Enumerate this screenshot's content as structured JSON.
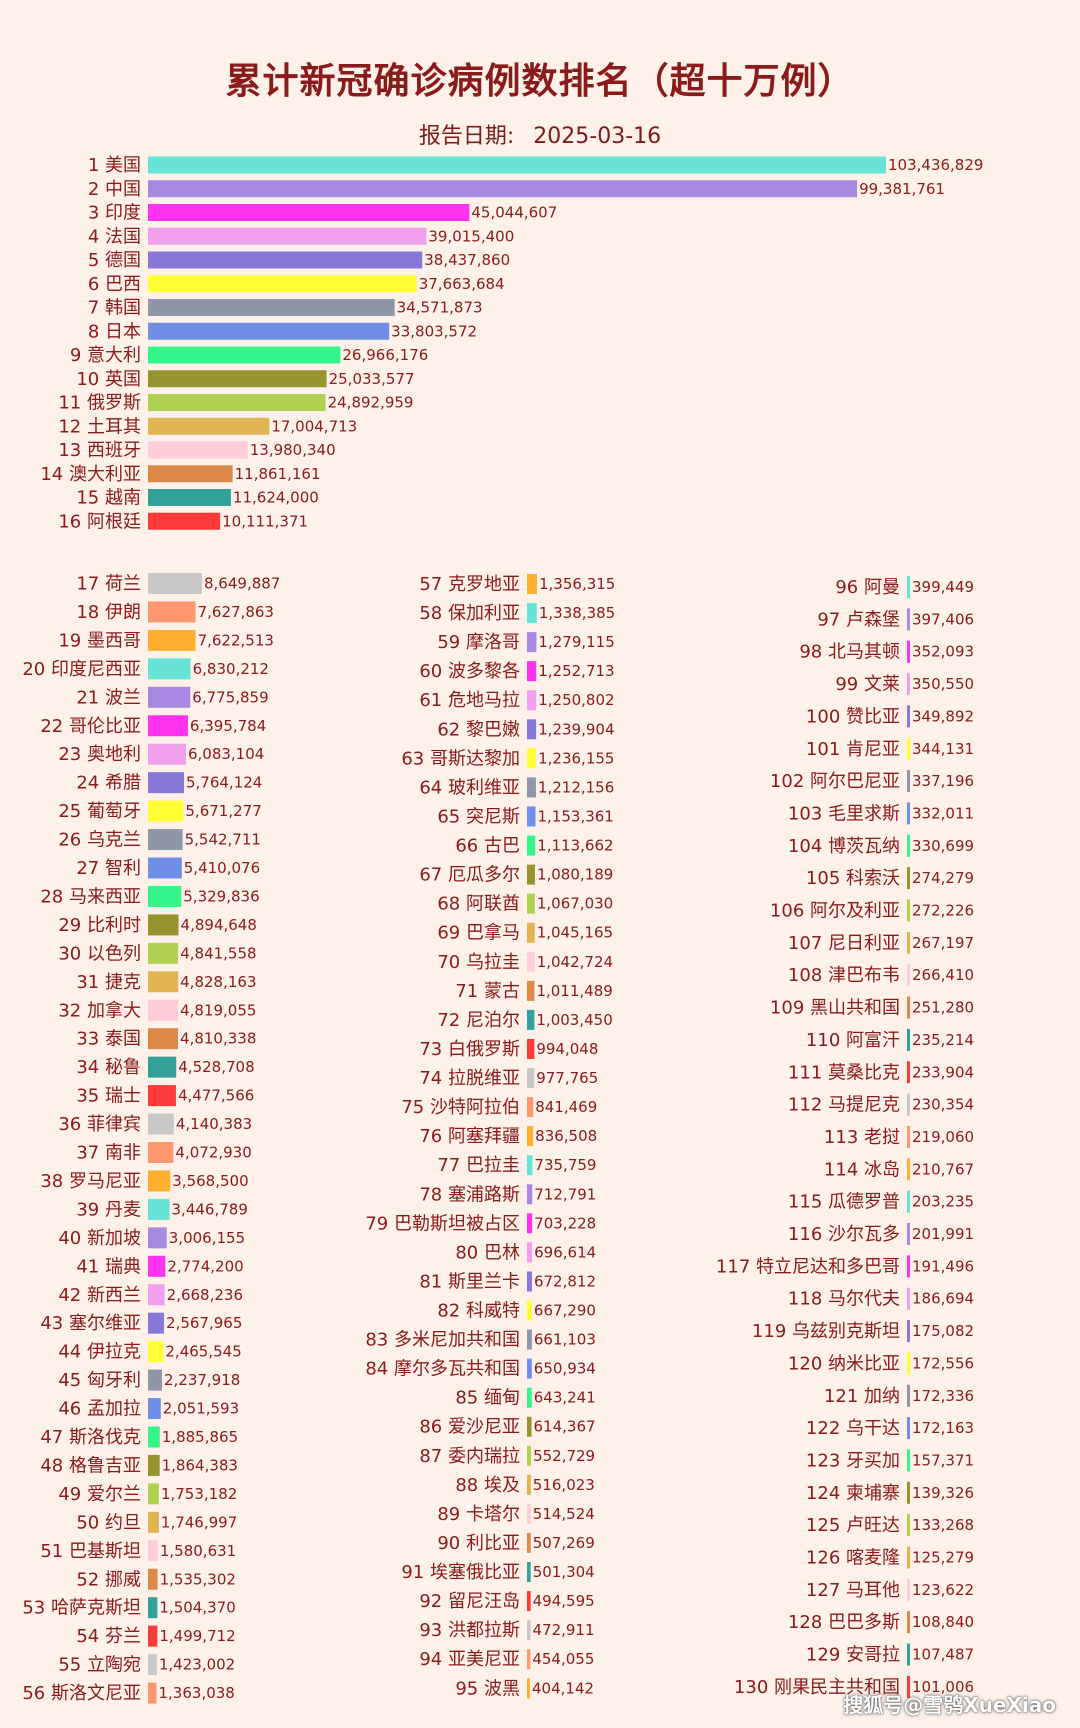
{
  "title": "累计新冠确诊病例数排名（超十万例）",
  "report_label": "报告日期:",
  "report_date": "2025-03-16",
  "watermark": "搜狐号@雪鸮XueXiao",
  "colors": [
    "#66e3d6",
    "#a888e0",
    "#ff33ee",
    "#f0a0ee",
    "#8878d8",
    "#ffff33",
    "#8f96a8",
    "#6f8fe6",
    "#33f58a",
    "#979430",
    "#b0d050",
    "#e0b450",
    "#ffccda",
    "#dd8a48",
    "#33a09a",
    "#ff3a3a",
    "#c8c8c8",
    "#ff9870",
    "#ffb030"
  ],
  "chart_data": {
    "type": "bar",
    "orientation": "horizontal",
    "title": "累计新冠确诊病例数排名（超十万例）",
    "items": [
      {
        "rank": "1",
        "name": "美国",
        "value": 103436829,
        "label": "103,436,829"
      },
      {
        "rank": "2",
        "name": "中国",
        "value": 99381761,
        "label": "99,381,761"
      },
      {
        "rank": "3",
        "name": "印度",
        "value": 45044607,
        "label": "45,044,607"
      },
      {
        "rank": "4",
        "name": "法国",
        "value": 39015400,
        "label": "39,015,400"
      },
      {
        "rank": "5",
        "name": "德国",
        "value": 38437860,
        "label": "38,437,860"
      },
      {
        "rank": "6",
        "name": "巴西",
        "value": 37663684,
        "label": "37,663,684"
      },
      {
        "rank": "7",
        "name": "韩国",
        "value": 34571873,
        "label": "34,571,873"
      },
      {
        "rank": "8",
        "name": "日本",
        "value": 33803572,
        "label": "33,803,572"
      },
      {
        "rank": "9",
        "name": "意大利",
        "value": 26966176,
        "label": "26,966,176"
      },
      {
        "rank": "10",
        "name": "英国",
        "value": 25033577,
        "label": "25,033,577"
      },
      {
        "rank": "11",
        "name": "俄罗斯",
        "value": 24892959,
        "label": "24,892,959"
      },
      {
        "rank": "12",
        "name": "土耳其",
        "value": 17004713,
        "label": "17,004,713"
      },
      {
        "rank": "13",
        "name": "西班牙",
        "value": 13980340,
        "label": "13,980,340"
      },
      {
        "rank": "14",
        "name": "澳大利亚",
        "value": 11861161,
        "label": "11,861,161"
      },
      {
        "rank": "15",
        "name": "越南",
        "value": 11624000,
        "label": "11,624,000"
      },
      {
        "rank": "16",
        "name": "阿根廷",
        "value": 10111371,
        "label": "10,111,371"
      },
      {
        "rank": "17",
        "name": "荷兰",
        "value": 8649887,
        "label": "8,649,887"
      },
      {
        "rank": "18",
        "name": "伊朗",
        "value": 7627863,
        "label": "7,627,863"
      },
      {
        "rank": "19",
        "name": "墨西哥",
        "value": 7622513,
        "label": "7,622,513"
      },
      {
        "rank": "20",
        "name": "印度尼西亚",
        "value": 6830212,
        "label": "6,830,212"
      },
      {
        "rank": "21",
        "name": "波兰",
        "value": 6775859,
        "label": "6,775,859"
      },
      {
        "rank": "22",
        "name": "哥伦比亚",
        "value": 6395784,
        "label": "6,395,784"
      },
      {
        "rank": "23",
        "name": "奥地利",
        "value": 6083104,
        "label": "6,083,104"
      },
      {
        "rank": "24",
        "name": "希腊",
        "value": 5764124,
        "label": "5,764,124"
      },
      {
        "rank": "25",
        "name": "葡萄牙",
        "value": 5671277,
        "label": "5,671,277"
      },
      {
        "rank": "26",
        "name": "乌克兰",
        "value": 5542711,
        "label": "5,542,711"
      },
      {
        "rank": "27",
        "name": "智利",
        "value": 5410076,
        "label": "5,410,076"
      },
      {
        "rank": "28",
        "name": "马来西亚",
        "value": 5329836,
        "label": "5,329,836"
      },
      {
        "rank": "29",
        "name": "比利时",
        "value": 4894648,
        "label": "4,894,648"
      },
      {
        "rank": "30",
        "name": "以色列",
        "value": 4841558,
        "label": "4,841,558"
      },
      {
        "rank": "31",
        "name": "捷克",
        "value": 4828163,
        "label": "4,828,163"
      },
      {
        "rank": "32",
        "name": "加拿大",
        "value": 4819055,
        "label": "4,819,055"
      },
      {
        "rank": "33",
        "name": "泰国",
        "value": 4810338,
        "label": "4,810,338"
      },
      {
        "rank": "34",
        "name": "秘鲁",
        "value": 4528708,
        "label": "4,528,708"
      },
      {
        "rank": "35",
        "name": "瑞士",
        "value": 4477566,
        "label": "4,477,566"
      },
      {
        "rank": "36",
        "name": "菲律宾",
        "value": 4140383,
        "label": "4,140,383"
      },
      {
        "rank": "37",
        "name": "南非",
        "value": 4072930,
        "label": "4,072,930"
      },
      {
        "rank": "38",
        "name": "罗马尼亚",
        "value": 3568500,
        "label": "3,568,500"
      },
      {
        "rank": "39",
        "name": "丹麦",
        "value": 3446789,
        "label": "3,446,789"
      },
      {
        "rank": "40",
        "name": "新加坡",
        "value": 3006155,
        "label": "3,006,155"
      },
      {
        "rank": "41",
        "name": "瑞典",
        "value": 2774200,
        "label": "2,774,200"
      },
      {
        "rank": "42",
        "name": "新西兰",
        "value": 2668236,
        "label": "2,668,236"
      },
      {
        "rank": "43",
        "name": "塞尔维亚",
        "value": 2567965,
        "label": "2,567,965"
      },
      {
        "rank": "44",
        "name": "伊拉克",
        "value": 2465545,
        "label": "2,465,545"
      },
      {
        "rank": "45",
        "name": "匈牙利",
        "value": 2237918,
        "label": "2,237,918"
      },
      {
        "rank": "46",
        "name": "孟加拉",
        "value": 2051593,
        "label": "2,051,593"
      },
      {
        "rank": "47",
        "name": "斯洛伐克",
        "value": 1885865,
        "label": "1,885,865"
      },
      {
        "rank": "48",
        "name": "格鲁吉亚",
        "value": 1864383,
        "label": "1,864,383"
      },
      {
        "rank": "49",
        "name": "爱尔兰",
        "value": 1753182,
        "label": "1,753,182"
      },
      {
        "rank": "50",
        "name": "约旦",
        "value": 1746997,
        "label": "1,746,997"
      },
      {
        "rank": "51",
        "name": "巴基斯坦",
        "value": 1580631,
        "label": "1,580,631"
      },
      {
        "rank": "52",
        "name": "挪威",
        "value": 1535302,
        "label": "1,535,302"
      },
      {
        "rank": "53",
        "name": "哈萨克斯坦",
        "value": 1504370,
        "label": "1,504,370"
      },
      {
        "rank": "54",
        "name": "芬兰",
        "value": 1499712,
        "label": "1,499,712"
      },
      {
        "rank": "55",
        "name": "立陶宛",
        "value": 1423002,
        "label": "1,423,002"
      },
      {
        "rank": "56",
        "name": "斯洛文尼亚",
        "value": 1363038,
        "label": "1,363,038"
      },
      {
        "rank": "57",
        "name": "克罗地亚",
        "value": 1356315,
        "label": "1,356,315"
      },
      {
        "rank": "58",
        "name": "保加利亚",
        "value": 1338385,
        "label": "1,338,385"
      },
      {
        "rank": "59",
        "name": "摩洛哥",
        "value": 1279115,
        "label": "1,279,115"
      },
      {
        "rank": "60",
        "name": "波多黎各",
        "value": 1252713,
        "label": "1,252,713"
      },
      {
        "rank": "61",
        "name": "危地马拉",
        "value": 1250802,
        "label": "1,250,802"
      },
      {
        "rank": "62",
        "name": "黎巴嫩",
        "value": 1239904,
        "label": "1,239,904"
      },
      {
        "rank": "63",
        "name": "哥斯达黎加",
        "value": 1236155,
        "label": "1,236,155"
      },
      {
        "rank": "64",
        "name": "玻利维亚",
        "value": 1212156,
        "label": "1,212,156"
      },
      {
        "rank": "65",
        "name": "突尼斯",
        "value": 1153361,
        "label": "1,153,361"
      },
      {
        "rank": "66",
        "name": "古巴",
        "value": 1113662,
        "label": "1,113,662"
      },
      {
        "rank": "67",
        "name": "厄瓜多尔",
        "value": 1080189,
        "label": "1,080,189"
      },
      {
        "rank": "68",
        "name": "阿联酋",
        "value": 1067030,
        "label": "1,067,030"
      },
      {
        "rank": "69",
        "name": "巴拿马",
        "value": 1045165,
        "label": "1,045,165"
      },
      {
        "rank": "70",
        "name": "乌拉圭",
        "value": 1042724,
        "label": "1,042,724"
      },
      {
        "rank": "71",
        "name": "蒙古",
        "value": 1011489,
        "label": "1,011,489"
      },
      {
        "rank": "72",
        "name": "尼泊尔",
        "value": 1003450,
        "label": "1,003,450"
      },
      {
        "rank": "73",
        "name": "白俄罗斯",
        "value": 994048,
        "label": "994,048"
      },
      {
        "rank": "74",
        "name": "拉脱维亚",
        "value": 977765,
        "label": "977,765"
      },
      {
        "rank": "75",
        "name": "沙特阿拉伯",
        "value": 841469,
        "label": "841,469"
      },
      {
        "rank": "76",
        "name": "阿塞拜疆",
        "value": 836508,
        "label": "836,508"
      },
      {
        "rank": "77",
        "name": "巴拉圭",
        "value": 735759,
        "label": "735,759"
      },
      {
        "rank": "78",
        "name": "塞浦路斯",
        "value": 712791,
        "label": "712,791"
      },
      {
        "rank": "79",
        "name": "巴勒斯坦被占区",
        "value": 703228,
        "label": "703,228"
      },
      {
        "rank": "80",
        "name": "巴林",
        "value": 696614,
        "label": "696,614"
      },
      {
        "rank": "81",
        "name": "斯里兰卡",
        "value": 672812,
        "label": "672,812"
      },
      {
        "rank": "82",
        "name": "科威特",
        "value": 667290,
        "label": "667,290"
      },
      {
        "rank": "83",
        "name": "多米尼加共和国",
        "value": 661103,
        "label": "661,103"
      },
      {
        "rank": "84",
        "name": "摩尔多瓦共和国",
        "value": 650934,
        "label": "650,934"
      },
      {
        "rank": "85",
        "name": "缅甸",
        "value": 643241,
        "label": "643,241"
      },
      {
        "rank": "86",
        "name": "爱沙尼亚",
        "value": 614367,
        "label": "614,367"
      },
      {
        "rank": "87",
        "name": "委内瑞拉",
        "value": 552729,
        "label": "552,729"
      },
      {
        "rank": "88",
        "name": "埃及",
        "value": 516023,
        "label": "516,023"
      },
      {
        "rank": "89",
        "name": "卡塔尔",
        "value": 514524,
        "label": "514,524"
      },
      {
        "rank": "90",
        "name": "利比亚",
        "value": 507269,
        "label": "507,269"
      },
      {
        "rank": "91",
        "name": "埃塞俄比亚",
        "value": 501304,
        "label": "501,304"
      },
      {
        "rank": "92",
        "name": "留尼汪岛",
        "value": 494595,
        "label": "494,595"
      },
      {
        "rank": "93",
        "name": "洪都拉斯",
        "value": 472911,
        "label": "472,911"
      },
      {
        "rank": "94",
        "name": "亚美尼亚",
        "value": 454055,
        "label": "454,055"
      },
      {
        "rank": "95",
        "name": "波黑",
        "value": 404142,
        "label": "404,142"
      },
      {
        "rank": "96",
        "name": "阿曼",
        "value": 399449,
        "label": "399,449"
      },
      {
        "rank": "97",
        "name": "卢森堡",
        "value": 397406,
        "label": "397,406"
      },
      {
        "rank": "98",
        "name": "北马其顿",
        "value": 352093,
        "label": "352,093"
      },
      {
        "rank": "99",
        "name": "文莱",
        "value": 350550,
        "label": "350,550"
      },
      {
        "rank": "100",
        "name": "赞比亚",
        "value": 349892,
        "label": "349,892"
      },
      {
        "rank": "101",
        "name": "肯尼亚",
        "value": 344131,
        "label": "344,131"
      },
      {
        "rank": "102",
        "name": "阿尔巴尼亚",
        "value": 337196,
        "label": "337,196"
      },
      {
        "rank": "103",
        "name": "毛里求斯",
        "value": 332011,
        "label": "332,011"
      },
      {
        "rank": "104",
        "name": "博茨瓦纳",
        "value": 330699,
        "label": "330,699"
      },
      {
        "rank": "105",
        "name": "科索沃",
        "value": 274279,
        "label": "274,279"
      },
      {
        "rank": "106",
        "name": "阿尔及利亚",
        "value": 272226,
        "label": "272,226"
      },
      {
        "rank": "107",
        "name": "尼日利亚",
        "value": 267197,
        "label": "267,197"
      },
      {
        "rank": "108",
        "name": "津巴布韦",
        "value": 266410,
        "label": "266,410"
      },
      {
        "rank": "109",
        "name": "黑山共和国",
        "value": 251280,
        "label": "251,280"
      },
      {
        "rank": "110",
        "name": "阿富汗",
        "value": 235214,
        "label": "235,214"
      },
      {
        "rank": "111",
        "name": "莫桑比克",
        "value": 233904,
        "label": "233,904"
      },
      {
        "rank": "112",
        "name": "马提尼克",
        "value": 230354,
        "label": "230,354"
      },
      {
        "rank": "113",
        "name": "老挝",
        "value": 219060,
        "label": "219,060"
      },
      {
        "rank": "114",
        "name": "冰岛",
        "value": 210767,
        "label": "210,767"
      },
      {
        "rank": "115",
        "name": "瓜德罗普",
        "value": 203235,
        "label": "203,235"
      },
      {
        "rank": "116",
        "name": "沙尔瓦多",
        "value": 201991,
        "label": "201,991"
      },
      {
        "rank": "117",
        "name": "特立尼达和多巴哥",
        "value": 191496,
        "label": "191,496"
      },
      {
        "rank": "118",
        "name": "马尔代夫",
        "value": 186694,
        "label": "186,694"
      },
      {
        "rank": "119",
        "name": "乌兹别克斯坦",
        "value": 175082,
        "label": "175,082"
      },
      {
        "rank": "120",
        "name": "纳米比亚",
        "value": 172556,
        "label": "172,556"
      },
      {
        "rank": "121",
        "name": "加纳",
        "value": 172336,
        "label": "172,336"
      },
      {
        "rank": "122",
        "name": "乌干达",
        "value": 172163,
        "label": "172,163"
      },
      {
        "rank": "123",
        "name": "牙买加",
        "value": 157371,
        "label": "157,371"
      },
      {
        "rank": "124",
        "name": "柬埔寨",
        "value": 139326,
        "label": "139,326"
      },
      {
        "rank": "125",
        "name": "卢旺达",
        "value": 133268,
        "label": "133,268"
      },
      {
        "rank": "126",
        "name": "喀麦隆",
        "value": 125279,
        "label": "125,279"
      },
      {
        "rank": "127",
        "name": "马耳他",
        "value": 123622,
        "label": "123,622"
      },
      {
        "rank": "128",
        "name": "巴巴多斯",
        "value": 108840,
        "label": "108,840"
      },
      {
        "rank": "129",
        "name": "安哥拉",
        "value": 107487,
        "label": "107,487"
      },
      {
        "rank": "130",
        "name": "刚果民主共和国",
        "value": 101006,
        "label": "101,006"
      }
    ]
  }
}
